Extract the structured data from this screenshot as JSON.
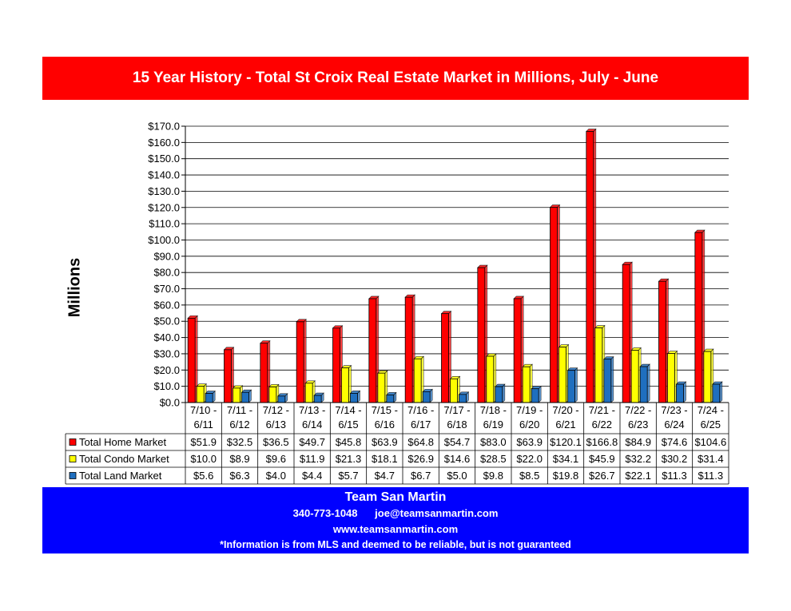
{
  "header": {
    "title": "15 Year History - Total St Croix Real Estate Market in Millions, July - June"
  },
  "footer": {
    "name": "Team San Martin",
    "phone": "340-773-1048",
    "email": "joe@teamsanmartin.com",
    "website": "www.teamsanmartin.com",
    "disclaimer": "*Information is from MLS and deemed to be reliable, but is not guaranteed"
  },
  "chart_data": {
    "type": "bar",
    "title": "15 Year History - Total St Croix Real Estate Market in Millions, July - June",
    "xlabel": "",
    "ylabel": "Millions",
    "ylim": [
      0,
      170
    ],
    "ytick_step": 10,
    "ytick_labels": [
      "$0.0",
      "$10.0",
      "$20.0",
      "$30.0",
      "$40.0",
      "$50.0",
      "$60.0",
      "$70.0",
      "$80.0",
      "$90.0",
      "$100.0",
      "$110.0",
      "$120.0",
      "$130.0",
      "$140.0",
      "$150.0",
      "$160.0",
      "$170.0"
    ],
    "grid": true,
    "legend": "data-table",
    "categories": [
      [
        "7/10 -",
        "6/11"
      ],
      [
        "7/11 -",
        "6/12"
      ],
      [
        "7/12 -",
        "6/13"
      ],
      [
        "7/13 -",
        "6/14"
      ],
      [
        "7/14 -",
        "6/15"
      ],
      [
        "7/15 -",
        "6/16"
      ],
      [
        "7/16 -",
        "6/17"
      ],
      [
        "7/17 -",
        "6/18"
      ],
      [
        "7/18 -",
        "6/19"
      ],
      [
        "7/19 -",
        "6/20"
      ],
      [
        "7/20 -",
        "6/21"
      ],
      [
        "7/21 -",
        "6/22"
      ],
      [
        "7/22 -",
        "6/23"
      ],
      [
        "7/23 -",
        "6/24"
      ],
      [
        "7/24 -",
        "6/25"
      ]
    ],
    "series": [
      {
        "name": "Total Home Market",
        "color": "#ff0000",
        "values": [
          51.9,
          32.5,
          36.5,
          49.7,
          45.8,
          63.9,
          64.8,
          54.7,
          83.0,
          63.9,
          120.1,
          166.8,
          84.9,
          74.6,
          104.6
        ],
        "labels": [
          "$51.9",
          "$32.5",
          "$36.5",
          "$49.7",
          "$45.8",
          "$63.9",
          "$64.8",
          "$54.7",
          "$83.0",
          "$63.9",
          "$120.1",
          "$166.8",
          "$84.9",
          "$74.6",
          "$104.6"
        ]
      },
      {
        "name": "Total Condo Market",
        "color": "#ffff00",
        "values": [
          10.0,
          8.9,
          9.6,
          11.9,
          21.3,
          18.1,
          26.9,
          14.6,
          28.5,
          22.0,
          34.1,
          45.9,
          32.2,
          30.2,
          31.4
        ],
        "labels": [
          "$10.0",
          "$8.9",
          "$9.6",
          "$11.9",
          "$21.3",
          "$18.1",
          "$26.9",
          "$14.6",
          "$28.5",
          "$22.0",
          "$34.1",
          "$45.9",
          "$32.2",
          "$30.2",
          "$31.4"
        ]
      },
      {
        "name": "Total Land Market",
        "color": "#1f6fbf",
        "values": [
          5.6,
          6.3,
          4.0,
          4.4,
          5.7,
          4.7,
          6.7,
          5.0,
          9.8,
          8.5,
          19.8,
          26.7,
          22.1,
          11.3,
          11.3
        ],
        "labels": [
          "$5.6",
          "$6.3",
          "$4.0",
          "$4.4",
          "$5.7",
          "$4.7",
          "$6.7",
          "$5.0",
          "$9.8",
          "$8.5",
          "$19.8",
          "$26.7",
          "$22.1",
          "$11.3",
          "$11.3"
        ]
      }
    ]
  }
}
